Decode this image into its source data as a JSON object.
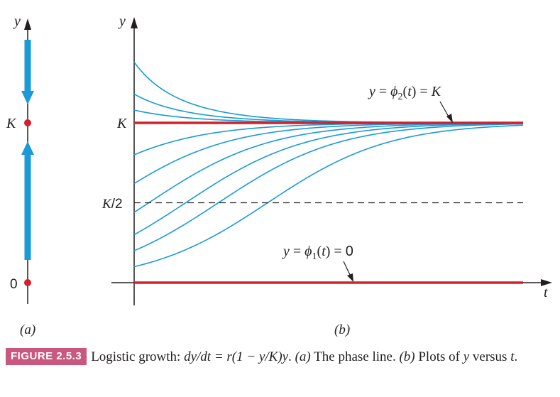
{
  "chart_data": [
    {
      "type": "phase-line",
      "panel_label": "(a)",
      "axis_label": "y",
      "tick_labels": [
        "K",
        "0"
      ],
      "equilibria": [
        0,
        1
      ],
      "arrows": [
        {
          "from": 1.0,
          "to": 2.0,
          "direction": "down"
        },
        {
          "from": 0.0,
          "to": 1.0,
          "direction": "up"
        }
      ],
      "colors": {
        "arrow": "#1a9ad6",
        "equilibrium": "#d4202c",
        "axis": "#231f20"
      }
    },
    {
      "type": "line",
      "panel_label": "(b)",
      "xlabel": "t",
      "ylabel": "y",
      "ytick_labels": {
        "K": "K",
        "K_half": "K/2"
      },
      "xlim": [
        0,
        3.2
      ],
      "ylim": [
        -0.15,
        1.42
      ],
      "units_note": "y in units of K; t in units of 1/r",
      "equilibrium_solutions": [
        {
          "value": 1.0,
          "label": "y = ϕ2(t) = K"
        },
        {
          "value": 0.0,
          "label": "y = ϕ1(t) = 0"
        }
      ],
      "reference_lines": [
        {
          "value": 0.5,
          "style": "dashed"
        }
      ],
      "growth_rate": 2.0,
      "series": [
        {
          "y0": 1.38
        },
        {
          "y0": 1.18
        },
        {
          "y0": 1.08
        },
        {
          "y0": 0.8
        },
        {
          "y0": 0.62
        },
        {
          "y0": 0.44
        },
        {
          "y0": 0.3
        },
        {
          "y0": 0.2
        },
        {
          "y0": 0.1
        }
      ],
      "colors": {
        "solution": "#1a9ad6",
        "equilibrium": "#d4202c",
        "axis": "#231f20"
      }
    }
  ],
  "caption": {
    "badge": "FIGURE 2.5.3",
    "text_a": "Logistic growth: ",
    "equation": "dy/dt = r(1 − y/K)y",
    "text_b": ". ",
    "part_a": "(a)",
    "text_c": " The phase line. ",
    "part_b": "(b)",
    "text_d": " Plots of ",
    "var_y": "y",
    "text_e": " versus ",
    "var_t": "t",
    "text_f": "."
  }
}
